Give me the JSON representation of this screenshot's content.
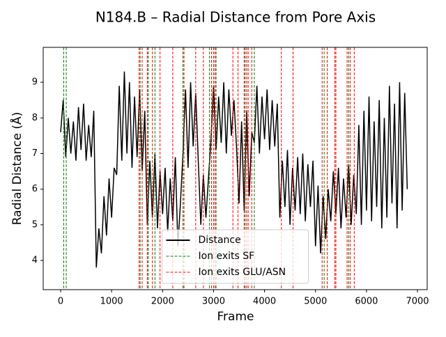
{
  "chart_data": {
    "type": "line",
    "title": "N184.B – Radial Distance from Pore Axis",
    "x_label": "Frame",
    "y_label": "Radial Distance (Å)",
    "x": [
      0,
      50,
      100,
      150,
      200,
      250,
      300,
      350,
      400,
      450,
      500,
      550,
      600,
      650,
      700,
      750,
      800,
      850,
      900,
      950,
      1000,
      1050,
      1100,
      1150,
      1200,
      1250,
      1300,
      1350,
      1400,
      1450,
      1500,
      1550,
      1600,
      1650,
      1700,
      1750,
      1800,
      1850,
      1900,
      1950,
      2000,
      2050,
      2100,
      2150,
      2200,
      2250,
      2300,
      2350,
      2400,
      2450,
      2500,
      2550,
      2600,
      2650,
      2700,
      2750,
      2800,
      2850,
      2900,
      2950,
      3000,
      3050,
      3100,
      3150,
      3200,
      3250,
      3300,
      3350,
      3400,
      3450,
      3500,
      3550,
      3600,
      3650,
      3700,
      3750,
      3800,
      3850,
      3900,
      3950,
      4000,
      4050,
      4100,
      4150,
      4200,
      4250,
      4300,
      4350,
      4400,
      4450,
      4500,
      4550,
      4600,
      4650,
      4700,
      4750,
      4800,
      4850,
      4900,
      4950,
      5000,
      5050,
      5100,
      5150,
      5200,
      5250,
      5300,
      5350,
      5400,
      5450,
      5500,
      5550,
      5600,
      5650,
      5700,
      5750,
      5800,
      5850,
      5900,
      5950,
      6000,
      6050,
      6100,
      6150,
      6200,
      6250,
      6300,
      6350,
      6400,
      6450,
      6500,
      6550,
      6600,
      6650,
      6700,
      6750,
      6800
    ],
    "series": [
      {
        "name": "Distance",
        "color": "#000000",
        "values": [
          7.6,
          8.5,
          6.9,
          8.0,
          7.0,
          7.9,
          6.8,
          8.3,
          7.1,
          8.4,
          6.8,
          7.8,
          6.9,
          8.2,
          3.8,
          4.9,
          4.2,
          5.8,
          4.7,
          6.3,
          5.2,
          6.6,
          6.4,
          8.9,
          6.8,
          9.3,
          7.0,
          9.0,
          6.6,
          8.6,
          6.9,
          8.8,
          6.5,
          8.2,
          5.0,
          6.8,
          5.2,
          7.0,
          4.9,
          6.5,
          5.3,
          6.6,
          4.8,
          6.3,
          5.1,
          6.9,
          4.4,
          5.6,
          7.0,
          8.8,
          6.6,
          9.0,
          7.2,
          8.7,
          6.8,
          5.0,
          6.4,
          5.2,
          6.3,
          7.4,
          8.9,
          7.1,
          8.6,
          7.3,
          9.0,
          7.0,
          8.8,
          7.5,
          8.5,
          7.2,
          5.6,
          7.9,
          5.4,
          8.2,
          5.8,
          7.6,
          7.3,
          8.9,
          7.0,
          8.6,
          7.4,
          8.8,
          7.1,
          8.5,
          7.2,
          8.4,
          5.2,
          6.8,
          5.5,
          7.1,
          5.0,
          6.6,
          5.4,
          6.9,
          5.3,
          7.0,
          5.1,
          6.7,
          5.5,
          6.8,
          4.4,
          6.1,
          4.2,
          5.8,
          4.6,
          6.0,
          5.1,
          6.5,
          5.3,
          6.6,
          4.9,
          6.3,
          5.2,
          6.7,
          5.0,
          6.4,
          5.3,
          7.8,
          5.0,
          8.2,
          5.4,
          8.6,
          5.1,
          7.9,
          5.5,
          8.5,
          4.9,
          8.0,
          5.2,
          8.9,
          5.6,
          8.4,
          4.9,
          9.0,
          5.4,
          8.7,
          6.0
        ]
      }
    ],
    "vlines": [
      {
        "name": "Ion exits SF",
        "color": "#008000",
        "x": [
          60,
          110,
          1560,
          1720,
          1850,
          2400,
          2920,
          3050,
          3620,
          3800,
          5170,
          5650
        ]
      },
      {
        "name": "Ion exits GLU/ASN",
        "color": "#ff0000",
        "x": [
          1540,
          1600,
          1700,
          1800,
          1950,
          2200,
          2420,
          2650,
          2800,
          2960,
          3000,
          3030,
          3380,
          3480,
          3600,
          3650,
          3680,
          3750,
          4330,
          4560,
          5130,
          5230,
          5380,
          5400,
          5620,
          5680,
          5760
        ]
      }
    ],
    "xlim": [
      -342,
      7191
    ],
    "ylim": [
      3.18,
      9.98
    ],
    "xticks": [
      0,
      1000,
      2000,
      3000,
      4000,
      5000,
      6000,
      7000
    ],
    "yticks": [
      4,
      5,
      6,
      7,
      8,
      9
    ],
    "legend": "lower center"
  }
}
